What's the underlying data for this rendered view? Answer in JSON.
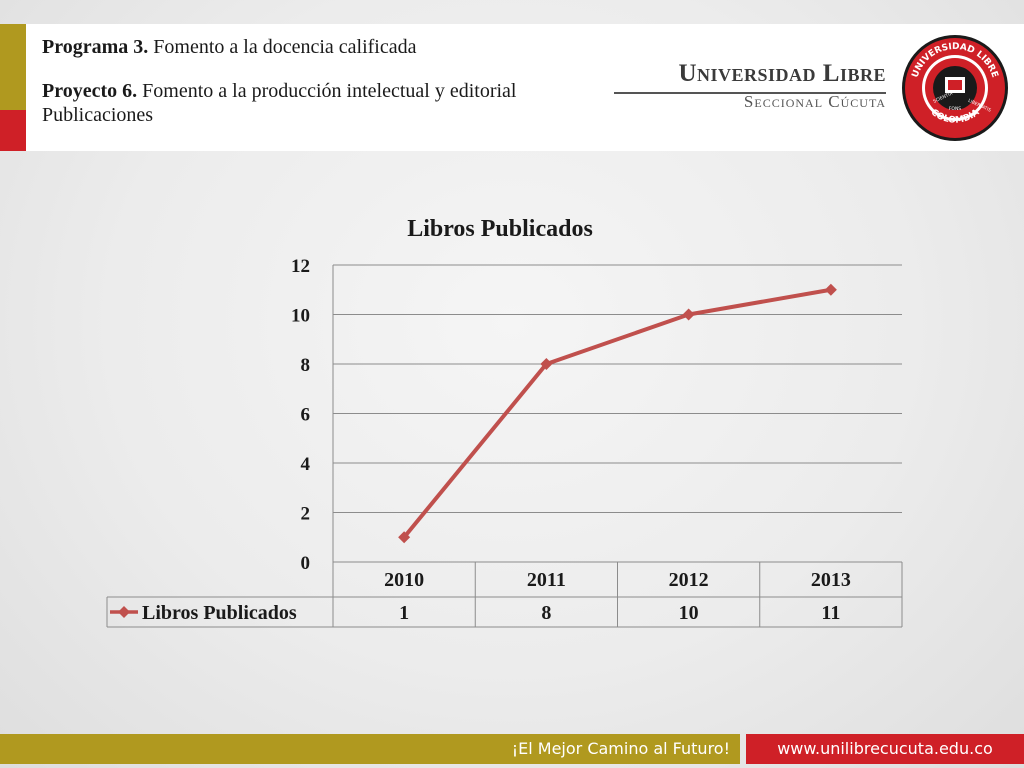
{
  "header": {
    "programa_label": "Programa 3.",
    "programa_text": " Fomento a la docencia calificada",
    "proyecto_label": "Proyecto  6.",
    "proyecto_text": " Fomento a la producción intelectual y editorial Publicaciones"
  },
  "branding": {
    "university_name": "Universidad Libre",
    "campus": "Seccional Cúcuta",
    "seal_text_top": "UNIVERSIDAD LIBRE",
    "seal_text_bottom": "COLOMBIA",
    "seal_motto": [
      "SCIENTIA",
      "FONS",
      "LIBERTATIS"
    ]
  },
  "footer": {
    "motto": "¡El Mejor Camino al Futuro!",
    "website": "www.unilibrecucuta.edu.co"
  },
  "colors": {
    "gold": "#b0991f",
    "red": "#cf2027",
    "series": "#c0504d"
  },
  "chart_data": {
    "type": "line",
    "title": "Libros Publicados",
    "categories": [
      "2010",
      "2011",
      "2012",
      "2013"
    ],
    "series": [
      {
        "name": "Libros Publicados",
        "values": [
          1,
          8,
          10,
          11
        ]
      }
    ],
    "ylim": [
      0,
      12
    ],
    "yticks": [
      0,
      2,
      4,
      6,
      8,
      10,
      12
    ],
    "grid": true,
    "data_table": true,
    "marker": "diamond"
  }
}
